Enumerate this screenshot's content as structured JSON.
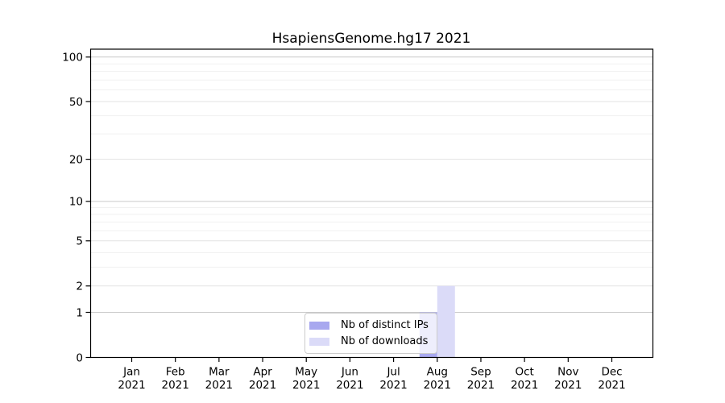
{
  "chart_data": {
    "type": "bar",
    "title": "HsapiensGenome.hg17 2021",
    "categories": [
      "Jan",
      "Feb",
      "Mar",
      "Apr",
      "May",
      "Jun",
      "Jul",
      "Aug",
      "Sep",
      "Oct",
      "Nov",
      "Dec"
    ],
    "x_year": "2021",
    "series": [
      {
        "name": "Nb of distinct IPs",
        "color": "#a8a8ef",
        "values": [
          0,
          0,
          0,
          0,
          0,
          0,
          0,
          1,
          0,
          0,
          0,
          0
        ]
      },
      {
        "name": "Nb of downloads",
        "color": "#dbdbf8",
        "values": [
          0,
          0,
          0,
          0,
          0,
          0,
          0,
          2,
          0,
          0,
          0,
          0
        ]
      }
    ],
    "xlabel": "",
    "ylabel": "",
    "scale": "log1p",
    "ylim": [
      0,
      113
    ],
    "y_ticks": [
      0,
      1,
      2,
      5,
      10,
      20,
      50,
      100
    ],
    "y_minor_gridlines": [
      3,
      4,
      6,
      7,
      8,
      9,
      30,
      40,
      60,
      70,
      80,
      90
    ],
    "y_decade_gridlines": [
      1,
      10,
      100
    ],
    "grid": true,
    "legend_position": "inside-bottom-center",
    "colors": {
      "axis": "#000000",
      "tick_label": "#000000",
      "grid_decade": "#c9c9c9",
      "grid_labeled": "#e3e3e3",
      "grid_minor": "#f1f1f1",
      "background": "#ffffff",
      "legend_border": "#cccccc"
    }
  }
}
